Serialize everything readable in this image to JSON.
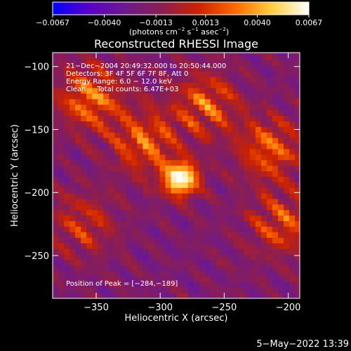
{
  "chart_data": {
    "type": "heatmap",
    "title": "Reconstructed RHESSI Image",
    "xlabel": "Heliocentric X (arcsec)",
    "ylabel": "Heliocentric Y (arcsec)",
    "xlim": [
      -384,
      -191
    ],
    "ylim": [
      -284,
      -89
    ],
    "x_ticks": [
      -350,
      -300,
      -250,
      -200
    ],
    "x_tick_labels": [
      "−350",
      "−300",
      "−250",
      "−200"
    ],
    "y_ticks": [
      -100,
      -150,
      -200,
      -250
    ],
    "y_tick_labels": [
      "−100",
      "−150",
      "−200",
      "−250"
    ],
    "colorbar": {
      "min": -0.0067,
      "max": 0.0067,
      "ticks": [
        -0.0067,
        -0.004,
        -0.0013,
        0.0013,
        0.004,
        0.0067
      ],
      "tick_labels": [
        "−0.0067",
        "−0.0040",
        "−0.0013",
        "0.0013",
        "0.0040",
        "0.0067"
      ],
      "units_label": "(photons cm",
      "units_exp1": "−2",
      "units_mid": " s",
      "units_exp2": "−1",
      "units_end": " asec",
      "units_exp3": "−2",
      "units_close": ")",
      "colors": [
        "#0000ff",
        "#5a00c8",
        "#6e1a8c",
        "#8c1e50",
        "#cc2200",
        "#ff6a00",
        "#ffd040",
        "#ffffff"
      ]
    },
    "annotations": [
      "21−Dec−2004 20:49:32.000 to 20:50:44.000",
      "Detectors: 3F 4F 5F 6F 7F 8F, Att 0",
      "Energy Range: 6.0 − 12.0 keV",
      "Clean     Total counts: 6.47E+03"
    ],
    "peak_label": "Position of Peak = [−284,−189]",
    "peak": {
      "x": -284,
      "y": -189
    },
    "hotspots": [
      {
        "x": -284,
        "y": -189,
        "value": 0.0067
      },
      {
        "x": -355,
        "y": -125,
        "value": 0.0045
      },
      {
        "x": -312,
        "y": -160,
        "value": 0.004
      },
      {
        "x": -265,
        "y": -130,
        "value": 0.0035
      },
      {
        "x": -215,
        "y": -165,
        "value": 0.0038
      },
      {
        "x": -205,
        "y": -225,
        "value": 0.003
      },
      {
        "x": -360,
        "y": -225,
        "value": 0.002
      }
    ]
  },
  "footer": {
    "timestamp": "5−May−2022 13:39"
  }
}
